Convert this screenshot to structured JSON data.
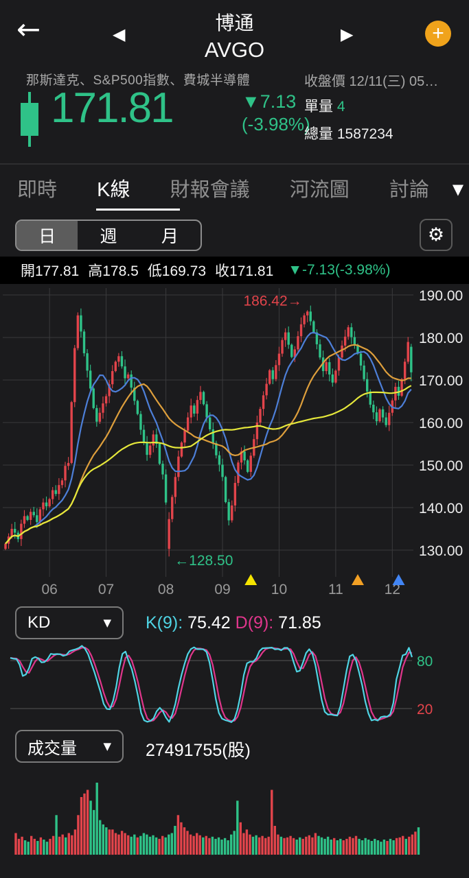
{
  "icons": {
    "back": "←",
    "prev": "◀",
    "next": "▶",
    "plus": "+",
    "caret_down": "▼",
    "gear": "⚙"
  },
  "header": {
    "title": "博通",
    "ticker": "AVGO"
  },
  "info": {
    "indices": "那斯達克、S&P500指數、費城半導體",
    "closing": "收盤價 12/11(三) 05…"
  },
  "price": {
    "value": "171.81",
    "change": "▼7.13",
    "change_pct": "(-3.98%)"
  },
  "stats": {
    "unit_label": "單量",
    "unit_value": "4",
    "total_label": "總量",
    "total_value": "1587234"
  },
  "tabs": [
    {
      "label": "即時",
      "active": false
    },
    {
      "label": "K線",
      "active": true
    },
    {
      "label": "財報會議",
      "active": false
    },
    {
      "label": "河流圖",
      "active": false
    },
    {
      "label": "討論",
      "active": false
    }
  ],
  "period": [
    {
      "label": "日",
      "active": true
    },
    {
      "label": "週",
      "active": false
    },
    {
      "label": "月",
      "active": false
    }
  ],
  "ohlc": {
    "open": "開177.81",
    "high": "高178.5",
    "low": "低169.73",
    "close": "收171.81",
    "change": "▼-7.13(-3.98%)"
  },
  "kd": {
    "selector_label": "KD",
    "k_label": "K(9):",
    "k_value": "75.42",
    "d_label": "D(9):",
    "d_value": "71.85"
  },
  "volume": {
    "selector_label": "成交量",
    "value": "27491755(股)"
  },
  "colors": {
    "up": "#e2444b",
    "down": "#2fc288",
    "accent_orange": "#f0a31b",
    "grid": "#3a3a3c",
    "axis_text": "#ececec",
    "month_text": "#9a9a9a"
  },
  "chart_data": [
    {
      "id": "price",
      "type": "candlestick",
      "title": "AVGO daily K-line, Jun-Dec",
      "y_ticks": [
        190,
        180,
        170,
        160,
        150,
        140,
        130
      ],
      "ylim": [
        126,
        192
      ],
      "months": [
        {
          "label": "06",
          "index": 14
        },
        {
          "label": "07",
          "index": 32
        },
        {
          "label": "08",
          "index": 51
        },
        {
          "label": "09",
          "index": 69
        },
        {
          "label": "10",
          "index": 87
        },
        {
          "label": "11",
          "index": 105
        },
        {
          "label": "12",
          "index": 123
        }
      ],
      "closes": [
        131.5,
        133.2,
        135.0,
        134.1,
        132.6,
        136.2,
        138.0,
        137.1,
        139.0,
        138.2,
        136.6,
        139.6,
        141.2,
        140.3,
        142.0,
        144.1,
        143.2,
        145.3,
        146.4,
        149.8,
        150.5,
        164.8,
        177.5,
        185.2,
        181.4,
        176.3,
        172.2,
        168.0,
        163.4,
        160.2,
        162.3,
        164.5,
        166.2,
        169.0,
        172.1,
        174.3,
        175.6,
        173.2,
        170.4,
        171.3,
        168.2,
        165.1,
        162.0,
        158.3,
        155.2,
        152.4,
        154.6,
        157.2,
        155.0,
        150.3,
        147.8,
        141.2,
        137.3,
        142.5,
        147.2,
        152.0,
        155.3,
        158.1,
        161.2,
        164.0,
        162.1,
        165.3,
        167.2,
        164.3,
        161.2,
        158.4,
        155.2,
        152.3,
        150.1,
        147.2,
        141.3,
        137.0,
        140.5,
        145.8,
        150.6,
        153.2,
        151.1,
        148.4,
        152.2,
        156.1,
        160.0,
        163.2,
        166.4,
        169.1,
        172.3,
        170.2,
        173.5,
        176.2,
        179.4,
        181.2,
        178.3,
        175.4,
        177.2,
        180.3,
        183.1,
        185.2,
        186.1,
        183.8,
        181.2,
        178.4,
        175.3,
        172.1,
        174.2,
        171.3,
        169.4,
        172.2,
        175.3,
        178.1,
        180.2,
        182.4,
        180.1,
        178.3,
        176.2,
        173.4,
        170.2,
        167.3,
        164.2,
        162.4,
        160.3,
        163.1,
        161.2,
        159.4,
        162.3,
        165.2,
        168.4,
        166.3,
        170.2,
        174.3,
        178.94,
        171.81
      ],
      "overrides": {
        "23": {
          "high": 185.9
        },
        "52": {
          "open": 130.3,
          "low": 128.5
        },
        "96": {
          "high": 186.42
        },
        "129": {
          "open": 177.81,
          "high": 178.5,
          "low": 169.73
        }
      },
      "up_color": "#e2444b",
      "down_color": "#2fc288",
      "moving_averages": [
        {
          "window": 10,
          "color": "#4d7fd8"
        },
        {
          "window": 24,
          "color": "#de9f3c"
        },
        {
          "window": 60,
          "color": "#e6e83b"
        }
      ],
      "annotations": [
        {
          "text": "186.42→",
          "index": 96,
          "price": 188.6,
          "anchor": "end",
          "color": "#e2444b"
        },
        {
          "text": "←128.50",
          "index": 52,
          "price": 127.6,
          "anchor": "start",
          "color": "#2fc288"
        }
      ],
      "markers": [
        {
          "index": 78,
          "color": "#f5e400"
        },
        {
          "index": 112,
          "color": "#f2a024"
        },
        {
          "index": 125,
          "color": "#4285f4"
        }
      ]
    },
    {
      "id": "kd",
      "type": "line",
      "title": "KD(9) stochastic oscillator",
      "k_period": 9,
      "smooth": 3,
      "k_color": "#4fd4e4",
      "d_color": "#e0368c",
      "levels": [
        {
          "value": 80,
          "label": "80",
          "color": "#2fc288"
        },
        {
          "value": 20,
          "label": "20",
          "color": "#e2444b"
        }
      ],
      "last_values": {
        "k": 75.42,
        "d": 71.85
      }
    },
    {
      "id": "volume",
      "type": "bar",
      "title": "Daily volume (shares)",
      "last_value": 27491755,
      "values": [
        0.3,
        0.22,
        0.25,
        0.2,
        0.18,
        0.26,
        0.22,
        0.19,
        0.24,
        0.21,
        0.18,
        0.22,
        0.26,
        0.55,
        0.25,
        0.28,
        0.24,
        0.3,
        0.27,
        0.35,
        0.55,
        0.8,
        0.85,
        0.9,
        0.75,
        0.62,
        1.0,
        0.48,
        0.42,
        0.38,
        0.35,
        0.35,
        0.3,
        0.28,
        0.33,
        0.3,
        0.27,
        0.25,
        0.28,
        0.24,
        0.26,
        0.3,
        0.28,
        0.25,
        0.27,
        0.24,
        0.22,
        0.26,
        0.24,
        0.28,
        0.3,
        0.4,
        0.55,
        0.45,
        0.38,
        0.33,
        0.28,
        0.26,
        0.3,
        0.27,
        0.24,
        0.26,
        0.23,
        0.25,
        0.22,
        0.24,
        0.21,
        0.23,
        0.2,
        0.28,
        0.33,
        0.75,
        0.45,
        0.3,
        0.35,
        0.28,
        0.25,
        0.27,
        0.24,
        0.26,
        0.23,
        0.25,
        0.9,
        0.4,
        0.28,
        0.25,
        0.23,
        0.24,
        0.26,
        0.23,
        0.21,
        0.24,
        0.22,
        0.25,
        0.27,
        0.24,
        0.3,
        0.26,
        0.24,
        0.22,
        0.25,
        0.21,
        0.23,
        0.2,
        0.22,
        0.2,
        0.22,
        0.25,
        0.23,
        0.26,
        0.22,
        0.2,
        0.23,
        0.21,
        0.19,
        0.22,
        0.2,
        0.18,
        0.21,
        0.19,
        0.22,
        0.2,
        0.23,
        0.24,
        0.26,
        0.22,
        0.25,
        0.28,
        0.32,
        0.38
      ]
    }
  ]
}
